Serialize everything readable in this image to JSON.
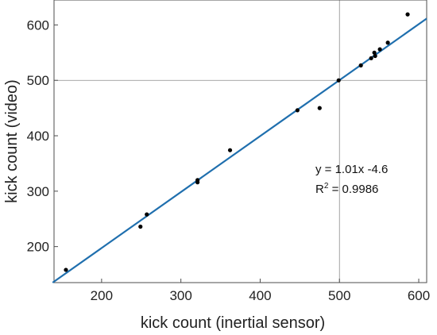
{
  "chart_data": {
    "type": "scatter",
    "xlabel": "kick count (inertial sensor)",
    "ylabel": "kick count (video)",
    "xlim": [
      140,
      610
    ],
    "ylim": [
      135,
      645
    ],
    "xticks": [
      200,
      300,
      400,
      500,
      600
    ],
    "yticks": [
      200,
      300,
      400,
      500,
      600
    ],
    "grid": "x=500 and y=500 lines",
    "points": [
      {
        "x": 155,
        "y": 158
      },
      {
        "x": 249,
        "y": 236
      },
      {
        "x": 257,
        "y": 258
      },
      {
        "x": 321,
        "y": 316
      },
      {
        "x": 321,
        "y": 320
      },
      {
        "x": 362,
        "y": 374
      },
      {
        "x": 447,
        "y": 446
      },
      {
        "x": 475,
        "y": 450
      },
      {
        "x": 499,
        "y": 500
      },
      {
        "x": 527,
        "y": 527
      },
      {
        "x": 540,
        "y": 540
      },
      {
        "x": 545,
        "y": 544
      },
      {
        "x": 544,
        "y": 550
      },
      {
        "x": 551,
        "y": 556
      },
      {
        "x": 561,
        "y": 568
      },
      {
        "x": 586,
        "y": 619
      }
    ],
    "fit": {
      "slope": 1.01,
      "intercept": -4.6,
      "equation": "y = 1.01x -4.6",
      "r2_prefix": "R",
      "r2_sup": "2",
      "r2_value": " = 0.9986"
    },
    "colors": {
      "points": "#000000",
      "fit_line": "#1f6fae",
      "grid": "#8a8a8a",
      "axes": "#4d4d4d"
    }
  }
}
